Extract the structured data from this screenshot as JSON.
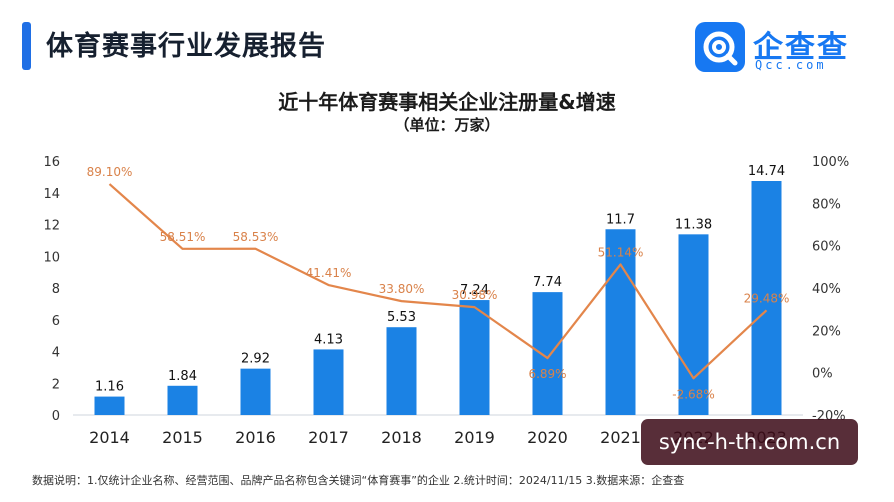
{
  "header": {
    "report_title": "体育赛事行业发展报告",
    "logo_name": "企查查",
    "logo_sub": "Qcc.com"
  },
  "colors": {
    "accent": "#1f6fe5",
    "bar": "#1b82e4",
    "line": "#e3864b",
    "line_label": "#d9824a"
  },
  "chart_data": {
    "type": "bar",
    "title": "近十年体育赛事相关企业注册量&增速",
    "subtitle": "（单位：万家）",
    "categories": [
      "2014",
      "2015",
      "2016",
      "2017",
      "2018",
      "2019",
      "2020",
      "2021",
      "2022",
      "2023"
    ],
    "series": [
      {
        "type": "bar",
        "axis": "left",
        "values": [
          1.16,
          1.84,
          2.92,
          4.13,
          5.53,
          7.24,
          7.74,
          11.7,
          11.38,
          14.74
        ],
        "labels": [
          "1.16",
          "1.84",
          "2.92",
          "4.13",
          "5.53",
          "7.24",
          "7.74",
          "11.7",
          "11.38",
          "14.74"
        ]
      },
      {
        "type": "line",
        "axis": "right",
        "values": [
          89.1,
          58.51,
          58.53,
          41.41,
          33.8,
          30.98,
          6.89,
          51.14,
          -2.68,
          29.48
        ],
        "labels": [
          "89.10%",
          "58.51%",
          "58.53%",
          "41.41%",
          "33.80%",
          "30.98%",
          "6.89%",
          "51.14%",
          "-2.68%",
          "29.48%"
        ]
      }
    ],
    "y_left": {
      "ylim": [
        0,
        16
      ],
      "ticks": [
        "0",
        "2",
        "4",
        "6",
        "8",
        "10",
        "12",
        "14",
        "16"
      ]
    },
    "y_right": {
      "ylim": [
        -20,
        100
      ],
      "ticks": [
        "-20%",
        "0%",
        "20%",
        "40%",
        "60%",
        "80%",
        "100%"
      ]
    },
    "grid": false,
    "legend": "none"
  },
  "footnote": "数据说明：1.仅统计企业名称、经营范围、品牌产品名称包含关键词“体育赛事”的企业   2.统计时间：2024/11/15   3.数据来源：企查查",
  "watermark": "sync-h-th.com.cn"
}
